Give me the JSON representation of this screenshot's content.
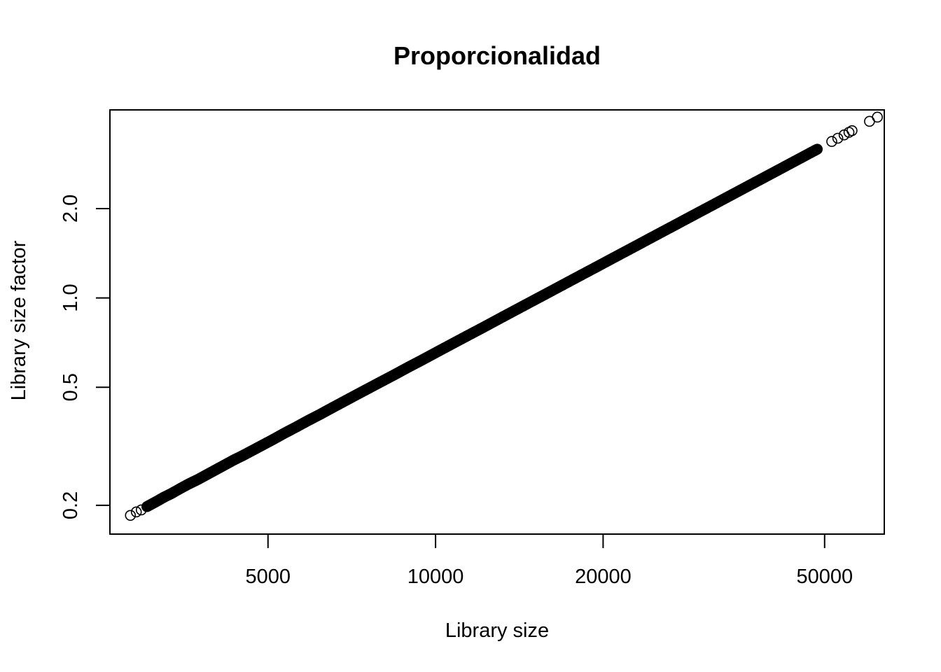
{
  "chart_data": {
    "type": "scatter",
    "title": "Proporcionalidad",
    "xlabel": "Library size",
    "ylabel": "Library size factor",
    "x_scale": "log",
    "y_scale": "log",
    "xlim": [
      2600,
      64000
    ],
    "ylim": [
      0.16,
      4.3
    ],
    "x_ticks": [
      {
        "value": 5000,
        "label": "5000"
      },
      {
        "value": 10000,
        "label": "10000"
      },
      {
        "value": 20000,
        "label": "20000"
      },
      {
        "value": 50000,
        "label": "50000"
      }
    ],
    "y_ticks": [
      {
        "value": 0.2,
        "label": "0.2"
      },
      {
        "value": 0.5,
        "label": "0.5"
      },
      {
        "value": 1.0,
        "label": "1.0"
      },
      {
        "value": 2.0,
        "label": "2.0"
      }
    ],
    "points": [
      {
        "x": 2830,
        "y": 0.185
      },
      {
        "x": 2900,
        "y": 0.19
      },
      {
        "x": 2960,
        "y": 0.193
      },
      {
        "x": 3030,
        "y": 0.198
      },
      {
        "x": 3120,
        "y": 0.204
      },
      {
        "x": 3180,
        "y": 0.208
      },
      {
        "x": 3250,
        "y": 0.213
      },
      {
        "x": 3350,
        "y": 0.219
      },
      {
        "x": 3480,
        "y": 0.228
      },
      {
        "x": 3600,
        "y": 0.236
      },
      {
        "x": 3750,
        "y": 0.245
      },
      {
        "x": 3900,
        "y": 0.255
      },
      {
        "x": 4050,
        "y": 0.265
      },
      {
        "x": 4200,
        "y": 0.275
      },
      {
        "x": 4350,
        "y": 0.285
      },
      {
        "x": 4500,
        "y": 0.294
      },
      {
        "x": 4700,
        "y": 0.307
      },
      {
        "x": 4900,
        "y": 0.32
      },
      {
        "x": 5100,
        "y": 0.333
      },
      {
        "x": 5350,
        "y": 0.35
      },
      {
        "x": 5600,
        "y": 0.366
      },
      {
        "x": 5900,
        "y": 0.386
      },
      {
        "x": 6200,
        "y": 0.405
      },
      {
        "x": 6500,
        "y": 0.425
      },
      {
        "x": 6850,
        "y": 0.448
      },
      {
        "x": 7200,
        "y": 0.471
      },
      {
        "x": 7600,
        "y": 0.497
      },
      {
        "x": 8000,
        "y": 0.523
      },
      {
        "x": 8450,
        "y": 0.552
      },
      {
        "x": 8900,
        "y": 0.582
      },
      {
        "x": 9400,
        "y": 0.614
      },
      {
        "x": 9900,
        "y": 0.647
      },
      {
        "x": 10450,
        "y": 0.683
      },
      {
        "x": 11000,
        "y": 0.719
      },
      {
        "x": 11600,
        "y": 0.758
      },
      {
        "x": 12250,
        "y": 0.8
      },
      {
        "x": 12900,
        "y": 0.843
      },
      {
        "x": 13600,
        "y": 0.889
      },
      {
        "x": 14350,
        "y": 0.938
      },
      {
        "x": 15100,
        "y": 0.987
      },
      {
        "x": 15900,
        "y": 1.039
      },
      {
        "x": 16800,
        "y": 1.098
      },
      {
        "x": 17700,
        "y": 1.157
      },
      {
        "x": 18650,
        "y": 1.219
      },
      {
        "x": 19650,
        "y": 1.284
      },
      {
        "x": 20700,
        "y": 1.353
      },
      {
        "x": 21800,
        "y": 1.425
      },
      {
        "x": 23000,
        "y": 1.503
      },
      {
        "x": 24200,
        "y": 1.582
      },
      {
        "x": 25500,
        "y": 1.667
      },
      {
        "x": 26900,
        "y": 1.758
      },
      {
        "x": 28300,
        "y": 1.85
      },
      {
        "x": 29800,
        "y": 1.948
      },
      {
        "x": 31400,
        "y": 2.052
      },
      {
        "x": 33000,
        "y": 2.157
      },
      {
        "x": 34700,
        "y": 2.268
      },
      {
        "x": 36500,
        "y": 2.386
      },
      {
        "x": 38300,
        "y": 2.503
      },
      {
        "x": 40200,
        "y": 2.627
      },
      {
        "x": 42000,
        "y": 2.745
      },
      {
        "x": 43800,
        "y": 2.863
      },
      {
        "x": 45000,
        "y": 2.941
      },
      {
        "x": 46200,
        "y": 3.02
      },
      {
        "x": 47300,
        "y": 3.092
      },
      {
        "x": 48500,
        "y": 3.17
      },
      {
        "x": 51500,
        "y": 3.366
      },
      {
        "x": 52800,
        "y": 3.451
      },
      {
        "x": 54200,
        "y": 3.542
      },
      {
        "x": 55300,
        "y": 3.614
      },
      {
        "x": 56000,
        "y": 3.66
      },
      {
        "x": 60200,
        "y": 3.935
      },
      {
        "x": 62200,
        "y": 4.065
      }
    ]
  }
}
